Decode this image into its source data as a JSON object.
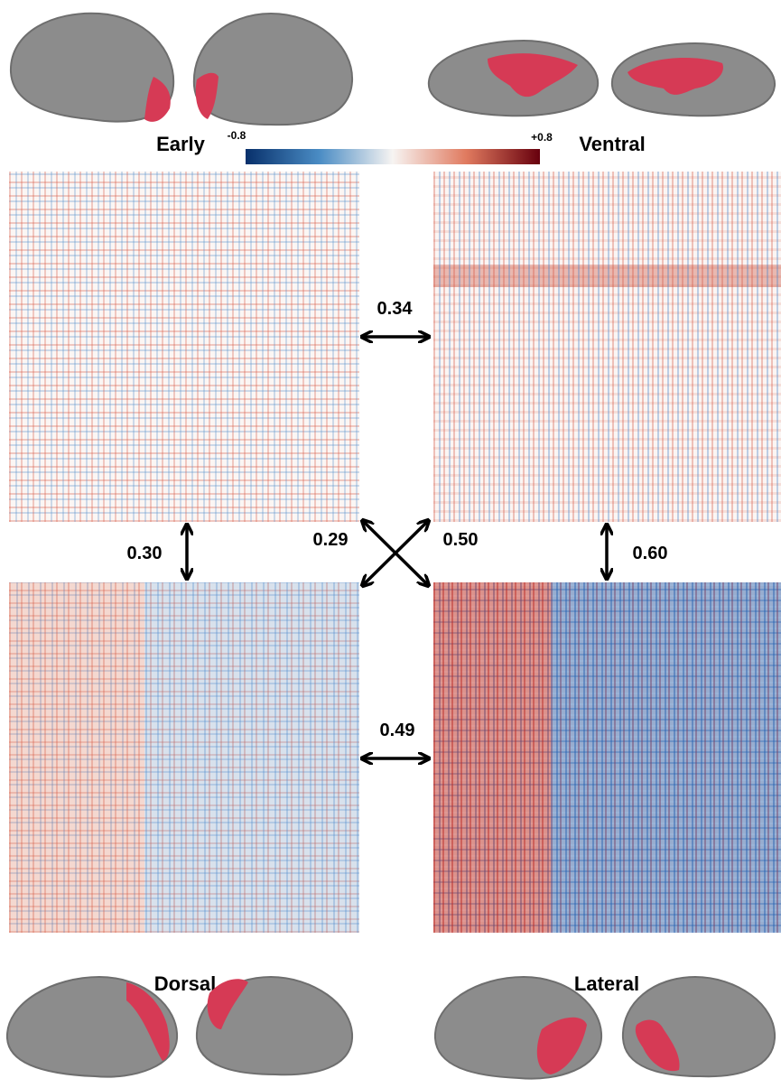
{
  "colorbar": {
    "min_label": "-0.8",
    "max_label": "+0.8"
  },
  "regions": {
    "early": "Early",
    "ventral": "Ventral",
    "dorsal": "Dorsal",
    "lateral": "Lateral"
  },
  "similarities": {
    "early_ventral": "0.34",
    "early_dorsal": "0.30",
    "dorsal_ventral": "0.29",
    "early_lateral": "0.50",
    "ventral_lateral": "0.60",
    "dorsal_lateral": "0.49"
  }
}
